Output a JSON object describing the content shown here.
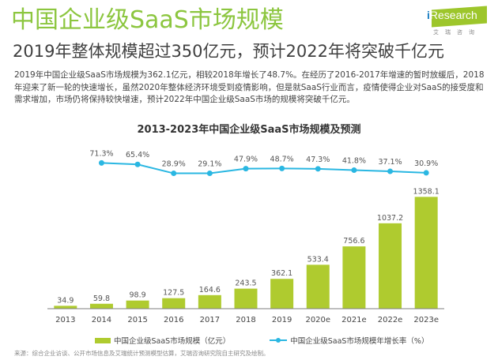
{
  "header": {
    "title": "中国企业级SaaS市场规模",
    "subtitle": "2019年整体规模超过350亿元，预计2022年将突破千亿元",
    "logo_text": "Research",
    "logo_prefix": "i",
    "logo_cn": "艾瑞咨询",
    "brand_color": "#8cc63f"
  },
  "description": "2019年中国企业级SaaS市场规模为362.1亿元，相较2018年增长了48.7%。在经历了2016-2017年增速的暂时放缓后，2018年迎来了新一轮的快速增长，虽然2020年整体经济环境受到疫情影响，但是就SaaS行业而言，疫情使得企业对SaaS的接受度和需求增加，市场仍将保持较快增速，预计2022年中国企业级SaaS市场的规模将突破千亿元。",
  "legend": {
    "bar": "中国企业级SaaS市场规模（亿元）",
    "line": "中国企业级SaaS市场规模年增长率（%）"
  },
  "source": "来源：综合企业访谈、公开市场信息及艾瑞统计预测模型估算，艾瑞咨询研究院自主研究及绘制。",
  "chart_data": {
    "type": "bar",
    "title": "2013-2023年中国企业级SaaS市场规模及预测",
    "xlabel": "",
    "ylabel": "",
    "categories": [
      "2013",
      "2014",
      "2015",
      "2016",
      "2017",
      "2018",
      "2019",
      "2020e",
      "2021e",
      "2022e",
      "2023e"
    ],
    "series": [
      {
        "name": "中国企业级SaaS市场规模（亿元）",
        "type": "bar",
        "color": "#afcb2f",
        "values": [
          34.9,
          59.8,
          98.9,
          127.5,
          164.6,
          243.5,
          362.1,
          533.4,
          756.6,
          1037.2,
          1358.1
        ],
        "labels": [
          "34.9",
          "59.8",
          "98.9",
          "127.5",
          "164.6",
          "243.5",
          "362.1",
          "533.4",
          "756.6",
          "1037.2",
          "1358.1"
        ]
      },
      {
        "name": "中国企业级SaaS市场规模年增长率（%）",
        "type": "line",
        "color": "#2ab7e2",
        "categories": [
          "2014",
          "2015",
          "2016",
          "2017",
          "2018",
          "2019",
          "2020e",
          "2021e",
          "2022e",
          "2023e"
        ],
        "values": [
          71.3,
          65.4,
          28.9,
          29.1,
          47.9,
          48.7,
          47.3,
          41.8,
          37.1,
          30.9
        ],
        "labels": [
          "71.3%",
          "65.4%",
          "28.9%",
          "29.1%",
          "47.9%",
          "48.7%",
          "47.3%",
          "41.8%",
          "37.1%",
          "30.9%"
        ]
      }
    ],
    "ylim": [
      0,
      1400
    ],
    "grid": false,
    "legend_position": "bottom"
  }
}
